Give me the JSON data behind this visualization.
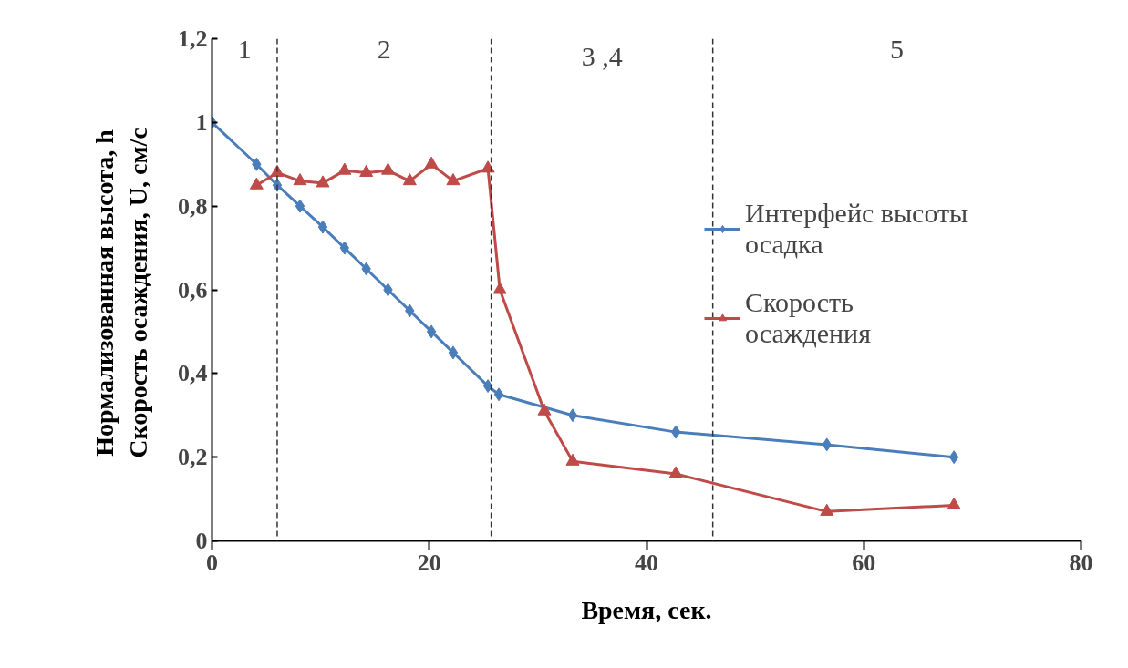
{
  "chart_data": {
    "type": "line",
    "xlabel": "Время, сек.",
    "ylabel": "Нормализованная  высота, h\nСкорость осаждения, U,  см/с",
    "xlim": [
      0,
      80
    ],
    "xticks": [
      0,
      20,
      40,
      60,
      80
    ],
    "ylim": [
      0,
      1.2
    ],
    "yticks": [
      0,
      {
        "value": 0.2,
        "label": "0,2"
      },
      {
        "value": 0.4,
        "label": "0,4"
      },
      {
        "value": 0.6,
        "label": "0,6"
      },
      {
        "value": 0.8,
        "label": "0,8"
      },
      1,
      {
        "value": 1.2,
        "label": "1,2"
      }
    ],
    "grid": false,
    "legend": "right",
    "line_style": "solid",
    "series": [
      {
        "name": "Интерфейс высоты осадка",
        "color": "#4a7ebb",
        "marker": "diamond",
        "x": [
          0,
          4.1,
          6.0,
          8.1,
          10.2,
          12.2,
          14.2,
          16.2,
          18.2,
          20.2,
          22.2,
          25.4,
          26.4,
          33.2,
          42.7,
          56.6,
          68.3
        ],
        "values": [
          1,
          0.9,
          0.85,
          0.8,
          0.75,
          0.7,
          0.65,
          0.6,
          0.55,
          0.5,
          0.45,
          0.37,
          0.35,
          0.3,
          0.26,
          0.23,
          0.2
        ]
      },
      {
        "name": "Скорость осаждения",
        "color": "#be4b48",
        "marker": "triangle",
        "x": [
          4.1,
          6.0,
          8.1,
          10.2,
          12.2,
          14.2,
          16.2,
          18.2,
          20.2,
          22.2,
          25.4,
          26.5,
          30.6,
          33.2,
          42.7,
          56.6,
          68.3
        ],
        "values": [
          0.85,
          0.88,
          0.86,
          0.855,
          0.885,
          0.88,
          0.885,
          0.86,
          0.9,
          0.86,
          0.89,
          0.6,
          0.31,
          0.19,
          0.16,
          0.07,
          0.085
        ]
      }
    ],
    "ref_lines": [
      {
        "axis": "x",
        "value": 6.0,
        "color": "#333333",
        "line_style": "dashed"
      },
      {
        "axis": "x",
        "value": 25.7,
        "color": "#333333",
        "line_style": "dashed"
      },
      {
        "axis": "x",
        "value": 46.1,
        "color": "#333333",
        "line_style": "dashed"
      }
    ],
    "annotations": [
      "1",
      "2",
      "3 ,4",
      "5"
    ]
  }
}
